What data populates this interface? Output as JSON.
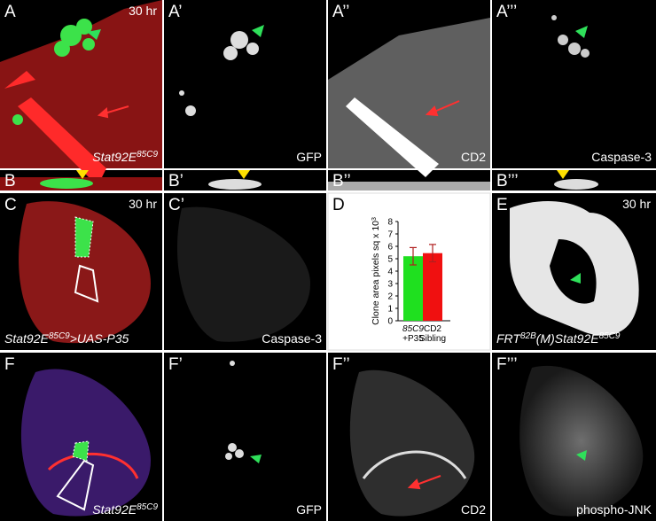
{
  "panels": [
    {
      "letter": "A",
      "corner": "30 hr",
      "caption": [
        {
          "t": "Stat92E"
        },
        {
          "sup": "85C9"
        }
      ],
      "italic": true
    },
    {
      "letter": "A’",
      "caption": [
        {
          "t": "GFP"
        }
      ]
    },
    {
      "letter": "A’’",
      "caption": [
        {
          "t": "CD2"
        }
      ]
    },
    {
      "letter": "A’’’",
      "caption": [
        {
          "t": "Caspase-3"
        }
      ]
    },
    {
      "letter": "B"
    },
    {
      "letter": "B’"
    },
    {
      "letter": "B’’"
    },
    {
      "letter": "B’’’"
    },
    {
      "letter": "C",
      "corner": "30 hr",
      "caption": [
        {
          "t": "Stat92E"
        },
        {
          "sup": "85C9"
        },
        {
          "t": ">UAS-P35"
        }
      ],
      "italic": true
    },
    {
      "letter": "C’",
      "caption": [
        {
          "t": "Caspase-3"
        }
      ]
    },
    {
      "letter": "D"
    },
    {
      "letter": "E",
      "corner": "30 hr",
      "caption": [
        {
          "t": "FRT"
        },
        {
          "sup": "82B"
        },
        {
          "t": "(M)Stat92E"
        },
        {
          "sup": "85C9"
        }
      ],
      "italic": true
    },
    {
      "letter": "F",
      "caption": [
        {
          "t": "Stat92E"
        },
        {
          "sup": "85C9"
        }
      ],
      "italic": true
    },
    {
      "letter": "F’",
      "caption": [
        {
          "t": "GFP"
        }
      ]
    },
    {
      "letter": "F’’",
      "caption": [
        {
          "t": "CD2"
        }
      ]
    },
    {
      "letter": "F’’’",
      "caption": [
        {
          "t": "phospho-JNK"
        }
      ]
    }
  ],
  "chart_data": {
    "type": "bar",
    "ylabel": [
      {
        "t": "Clone area pixels sq x 10"
      },
      {
        "sup": "3"
      }
    ],
    "categories": [
      [
        "85C9",
        "+P35"
      ],
      [
        "CD2",
        "Sibling"
      ]
    ],
    "values": [
      5.2,
      5.45
    ],
    "errors": [
      0.7,
      0.7
    ],
    "colors": [
      "#1fe01f",
      "#f01010"
    ],
    "ylim": [
      0,
      8
    ],
    "yticks": [
      0,
      1,
      2,
      3,
      4,
      5,
      6,
      7,
      8
    ]
  }
}
